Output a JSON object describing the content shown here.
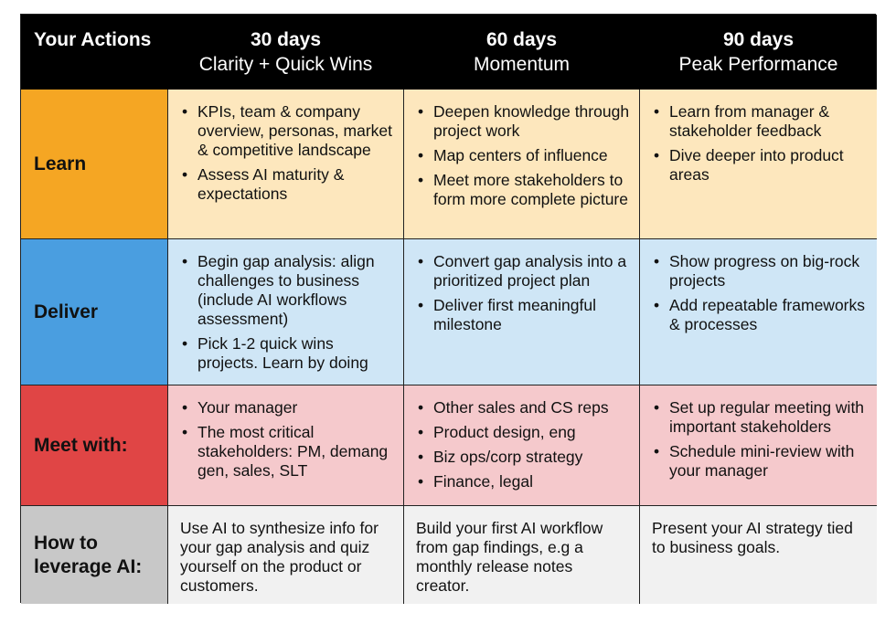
{
  "header": {
    "row_title": "Your Actions",
    "columns": [
      {
        "days": "30 days",
        "theme": "Clarity + Quick Wins"
      },
      {
        "days": "60 days",
        "theme": "Momentum"
      },
      {
        "days": "90 days",
        "theme": "Peak Performance"
      }
    ]
  },
  "rows": {
    "learn": {
      "label": "Learn",
      "cells": [
        [
          "KPIs, team & company overview, personas, market & competitive landscape",
          "Assess AI maturity & expectations"
        ],
        [
          "Deepen knowledge through project work",
          "Map centers of influence",
          "Meet more stakeholders to form more complete picture"
        ],
        [
          "Learn from manager & stakeholder feedback",
          "Dive deeper into product areas"
        ]
      ]
    },
    "deliver": {
      "label": "Deliver",
      "cells": [
        [
          "Begin gap analysis: align challenges to business (include AI workflows assessment)",
          "Pick 1-2 quick wins projects. Learn by doing"
        ],
        [
          "Convert gap analysis into a prioritized project plan",
          "Deliver first meaningful milestone"
        ],
        [
          "Show progress on big-rock projects",
          "Add repeatable frameworks & processes"
        ]
      ]
    },
    "meet": {
      "label": "Meet with:",
      "cells": [
        [
          "Your manager",
          "The most critical stakeholders: PM, demang gen, sales, SLT"
        ],
        [
          "Other sales and CS reps",
          "Product design, eng",
          "Biz ops/corp strategy",
          "Finance, legal"
        ],
        [
          "Set up regular meeting with important stakeholders",
          "Schedule mini-review with your manager"
        ]
      ]
    },
    "ai": {
      "label": "How to leverage AI:",
      "cells": [
        "Use AI to synthesize info for your gap analysis and quiz yourself on the product or customers.",
        "Build your first AI workflow from gap findings, e.g a monthly release notes creator.",
        "Present your AI strategy tied to business goals."
      ]
    }
  },
  "colors": {
    "header_bg": "#000000",
    "learn_label": "#f5a623",
    "learn_cell": "#fde7bd",
    "deliver_label": "#4a9ee0",
    "deliver_cell": "#cfe6f6",
    "meet_label": "#e04545",
    "meet_cell": "#f5c9cc",
    "ai_label": "#c8c8c8",
    "ai_cell": "#f1f1f1"
  }
}
